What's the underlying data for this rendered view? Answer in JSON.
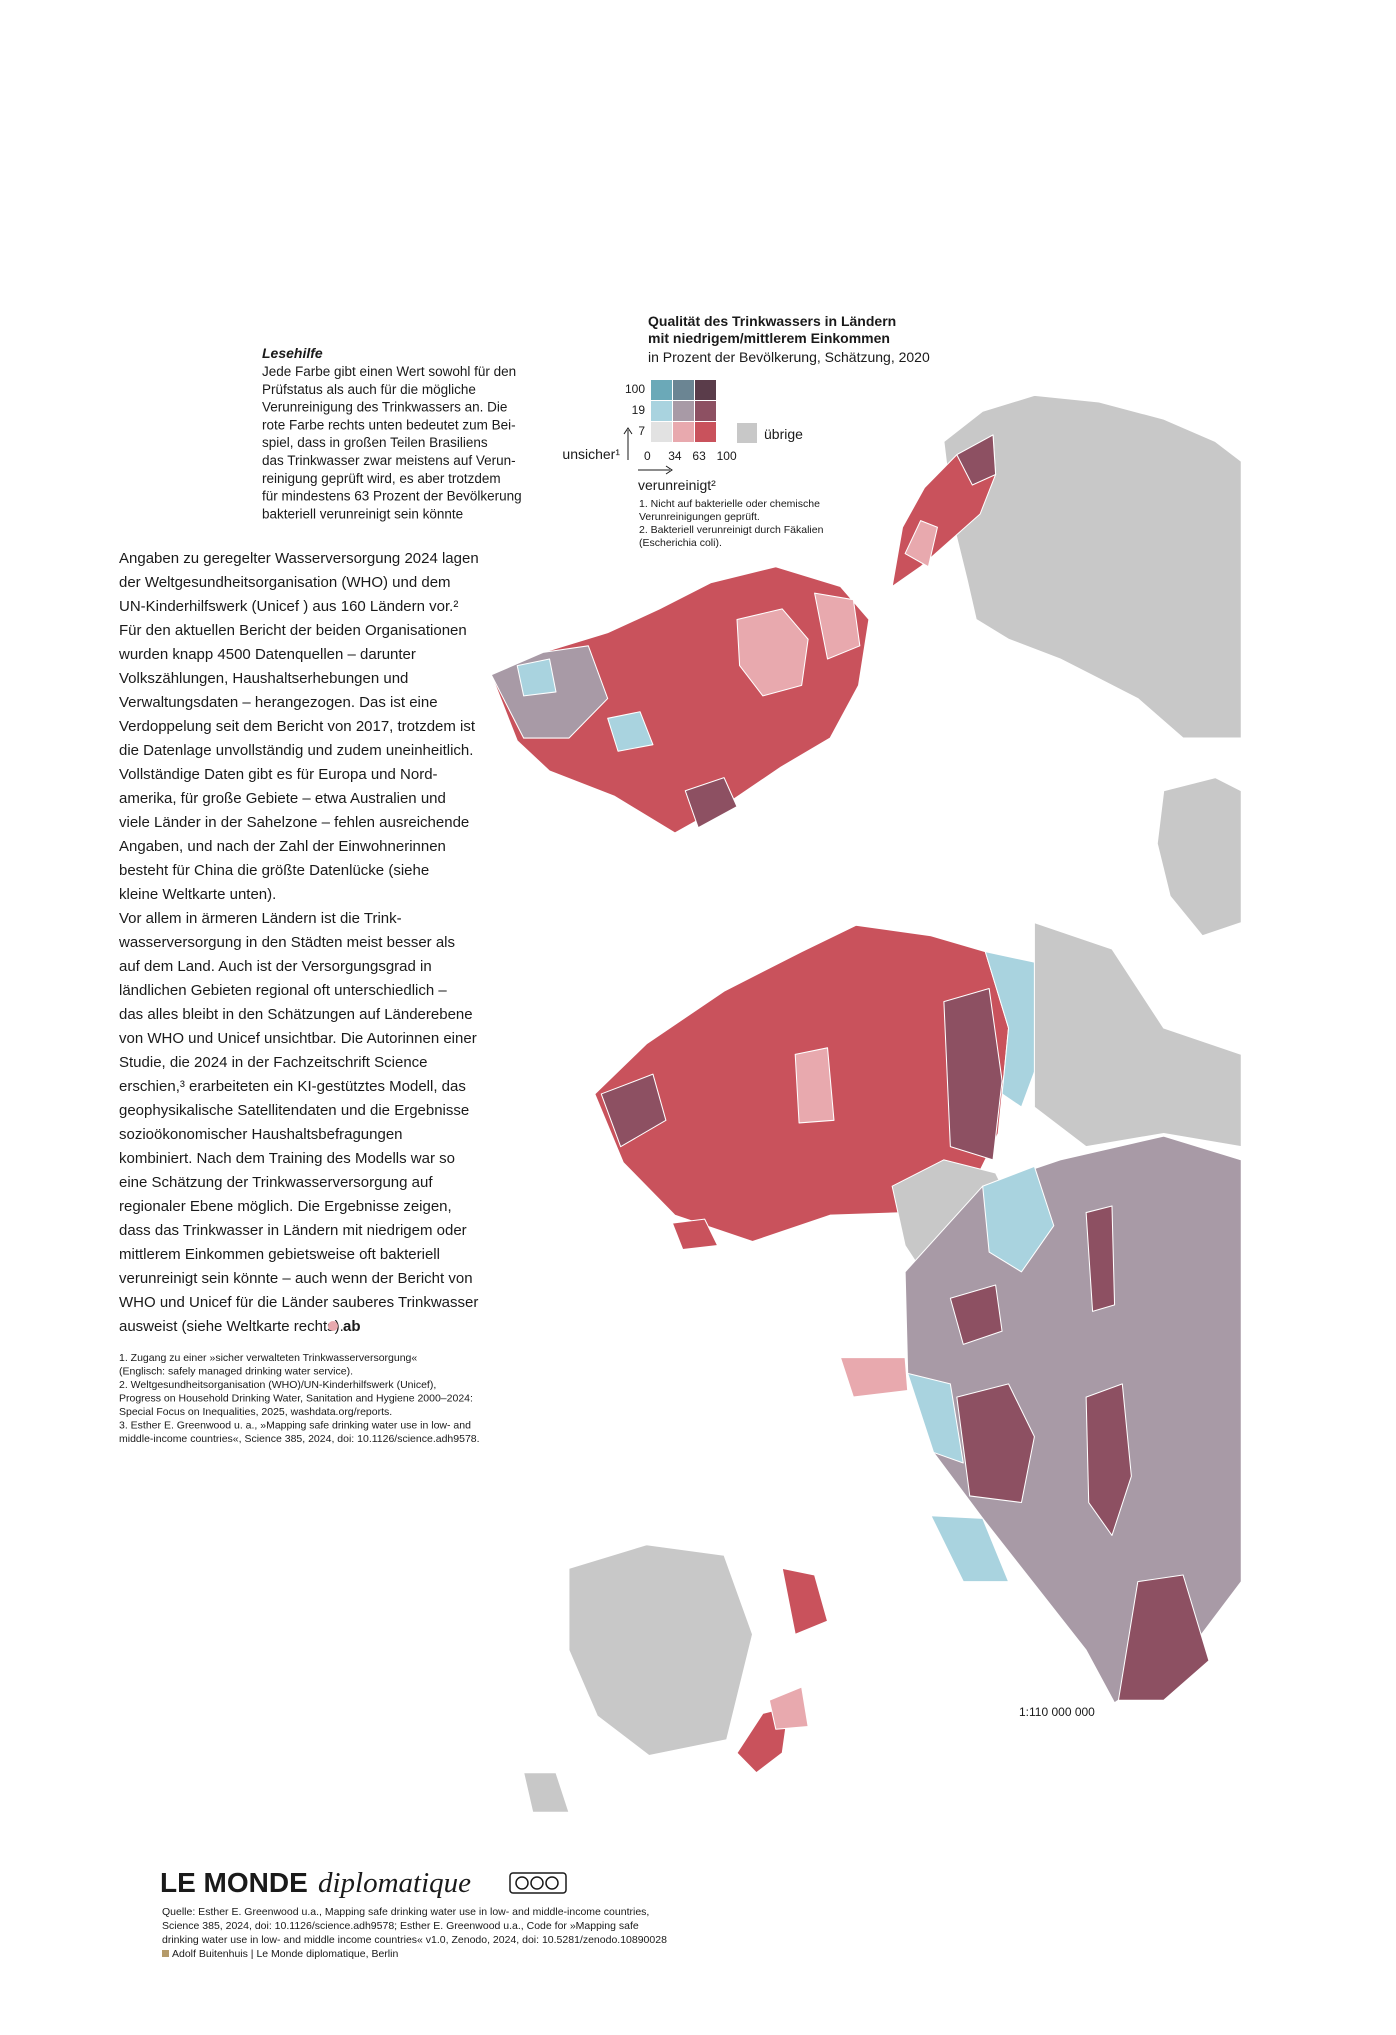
{
  "reading_help": {
    "title": "Lesehilfe",
    "lines": [
      "Jede Farbe gibt einen Wert sowohl für den",
      "Prüfstatus als auch für die mögliche",
      "Verunreinigung des Trinkwassers an. Die",
      "rote Farbe rechts unten bedeutet zum Bei-",
      "spiel, dass in großen Teilen Brasiliens",
      "das Trinkwasser zwar meistens auf Verun-",
      "reinigung geprüft wird, es aber trotzdem",
      "für mindestens 63 Prozent der Bevölkerung",
      "bakteriell verunreinigt sein könnte"
    ]
  },
  "legend": {
    "title_lines": [
      "Qualität des Trinkwassers in Ländern",
      "mit niedrigem/mittlerem Einkommen"
    ],
    "subtitle": "in Prozent der Bevölkerung, Schätzung, 2020",
    "y_labels": [
      "100",
      "19",
      "7"
    ],
    "x_labels": [
      "0",
      "34",
      "63",
      "100"
    ],
    "y_axis_label": "unsicher¹",
    "x_axis_label": "verunreinigt²",
    "other_label": "übrige",
    "other_color": "#c8c8c8",
    "colors": [
      [
        "#6ba9b8",
        "#6b8593",
        "#5a3c4a"
      ],
      [
        "#a9d3df",
        "#a89aa6",
        "#8d5062"
      ],
      [
        "#e2e2e2",
        "#e8a9ae",
        "#c9525c"
      ]
    ],
    "notes": [
      "1. Nicht auf bakterielle oder chemische",
      "Verunreinigungen geprüft.",
      "2. Bakteriell verunreinigt durch Fäkalien",
      "(Escherichia coli)."
    ]
  },
  "body": [
    "Angaben zu geregelter Wasserversorgung 2024 lagen",
    "der Weltgesundheitsorganisation (WHO) und dem",
    "UN-Kinderhilfswerk (Unicef ) aus 160 Ländern vor.²",
    "Für den aktuellen Bericht der beiden Organisationen",
    "wurden knapp 4500 Datenquellen – darunter",
    "Volkszählungen, Haushaltserhebungen und",
    "Verwaltungsdaten – herangezogen. Das ist eine",
    "Verdoppelung seit dem Bericht von 2017, trotzdem ist",
    "die Datenlage unvollständig und zudem uneinheitlich.",
    "    Vollständige Daten gibt es für Europa und Nord-",
    "amerika, für große Gebiete – etwa Australien und",
    "viele Länder in der Sahelzone – fehlen ausreichende",
    "Angaben, und nach der Zahl der Einwohnerinnen",
    "besteht für China die größte Datenlücke (siehe",
    "kleine Weltkarte unten).",
    "    Vor allem in ärmeren Ländern ist die Trink-",
    "wasserversorgung in den Städten meist besser als",
    "auf dem Land. Auch ist der Versorgungsgrad in",
    "ländlichen Gebieten regional oft unterschiedlich –",
    "das alles bleibt in den Schätzungen auf Länderebene",
    "von WHO und Unicef unsichtbar. Die Autorinnen einer",
    "Studie, die 2024 in der Fachzeitschrift Science",
    "erschien,³ erarbeiteten ein KI-gestütztes Modell, das",
    "geophysikalische Satellitendaten und die Ergebnisse",
    "sozioökonomischer Haushaltsbefragungen",
    "kombiniert. Nach dem Training des Modells war so",
    "eine Schätzung der Trinkwasserversorgung auf",
    "regionaler Ebene möglich. Die Ergebnisse zeigen,",
    "dass das Trinkwasser in Ländern mit niedrigem oder",
    "mittlerem Einkommen gebietsweise oft bakteriell",
    "verunreinigt sein könnte – auch wenn der Bericht von",
    "WHO und Unicef für die Länder sauberes Trinkwasser",
    "ausweist (siehe Weltkarte rechts)."
  ],
  "signature": "ab",
  "footnotes": [
    "1. Zugang zu einer »sicher verwalteten Trinkwasserversorgung«",
    "(Englisch: safely managed drinking water service).",
    "2. Weltgesundheitsorganisation (WHO)/UN-Kinderhilfswerk (Unicef),",
    "Progress on Household Drinking Water, Sanitation and Hygiene 2000–2024:",
    "Special Focus on Inequalities, 2025, washdata.org/reports.",
    "3. Esther E. Greenwood u. a., »Mapping safe drinking water use in low- and",
    "middle-income countries«, Science 385, 2024, doi: 10.1126/science.adh9578."
  ],
  "scale": "1:110 000 000",
  "logo": {
    "bold": "LE MONDE",
    "italic": "diplomatique"
  },
  "source": [
    "Quelle: Esther E. Greenwood u.a., Mapping safe drinking water use in low- and middle-income countries,",
    "Science 385, 2024, doi: 10.1126/science.adh9578; Esther E. Greenwood u.a., Code for »Mapping safe",
    "drinking water use in low- and middle income countries« v1.0, Zenodo, 2024, doi: 10.5281/zenodo.10890028",
    "Adolf Buitenhuis | Le Monde diplomatique, Berlin"
  ]
}
